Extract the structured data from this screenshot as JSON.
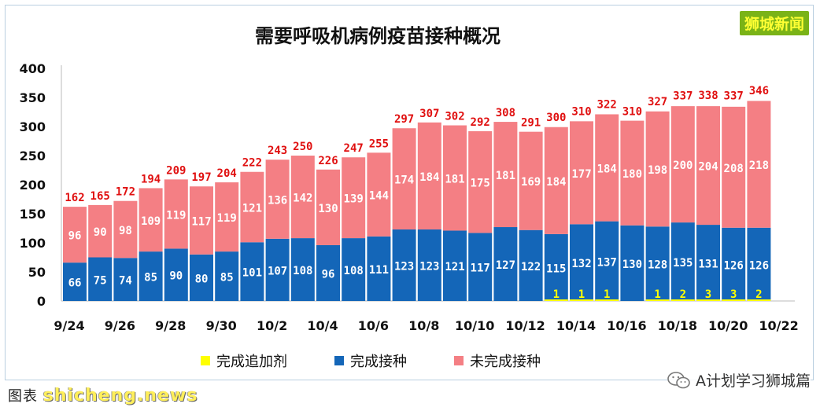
{
  "brand": "狮城新闻",
  "wechat_label": "A计划学习狮城篇",
  "footer": {
    "label": "图表",
    "watermark": "shicheng.news"
  },
  "colors": {
    "booster": "#ffff00",
    "completed": "#1466b8",
    "incomplete": "#f47f84",
    "label_red": "#e01010",
    "label_white": "#ffffff",
    "booster_label": "#ffff00"
  },
  "chart_data": {
    "type": "bar",
    "stacked": true,
    "title": "需要呼吸机病例疫苗接种概况",
    "ylim": [
      0,
      400
    ],
    "yticks": [
      "0",
      "50",
      "100",
      "150",
      "200",
      "250",
      "300",
      "350",
      "400"
    ],
    "ytick_values": [
      0,
      50,
      100,
      150,
      200,
      250,
      300,
      350,
      400
    ],
    "xtick_labels": [
      "9/24",
      "9/26",
      "9/28",
      "9/30",
      "10/2",
      "10/4",
      "10/6",
      "10/8",
      "10/10",
      "10/12",
      "10/14",
      "10/16",
      "10/18",
      "10/20",
      "10/22"
    ],
    "categories": [
      "9/24",
      "9/25",
      "9/26",
      "9/27",
      "9/28",
      "9/29",
      "9/30",
      "10/1",
      "10/2",
      "10/3",
      "10/4",
      "10/5",
      "10/6",
      "10/7",
      "10/8",
      "10/9",
      "10/10",
      "10/11",
      "10/12",
      "10/13",
      "10/14",
      "10/15",
      "10/16",
      "10/17",
      "10/18",
      "10/19",
      "10/20",
      "10/21"
    ],
    "series": [
      {
        "name": "完成追加剂",
        "values": [
          0,
          0,
          0,
          0,
          0,
          0,
          0,
          0,
          0,
          0,
          0,
          0,
          0,
          0,
          0,
          0,
          0,
          0,
          0,
          1,
          1,
          1,
          0,
          1,
          2,
          3,
          3,
          2
        ]
      },
      {
        "name": "完成接种",
        "values": [
          66,
          75,
          74,
          85,
          90,
          80,
          85,
          101,
          107,
          108,
          96,
          108,
          111,
          123,
          123,
          121,
          117,
          127,
          122,
          115,
          132,
          137,
          130,
          128,
          135,
          131,
          126,
          126
        ]
      },
      {
        "name": "未完成接种",
        "values": [
          96,
          90,
          98,
          109,
          119,
          117,
          119,
          121,
          136,
          142,
          130,
          139,
          144,
          174,
          184,
          181,
          175,
          181,
          169,
          184,
          177,
          184,
          180,
          198,
          200,
          204,
          208,
          218
        ]
      }
    ],
    "totals": [
      162,
      165,
      172,
      194,
      209,
      197,
      204,
      222,
      243,
      250,
      226,
      247,
      255,
      297,
      307,
      302,
      292,
      308,
      291,
      300,
      310,
      322,
      310,
      327,
      337,
      338,
      337,
      346
    ],
    "legend": [
      "完成追加剂",
      "完成接种",
      "未完成接种"
    ],
    "legend_position": "bottom",
    "grid": false
  }
}
